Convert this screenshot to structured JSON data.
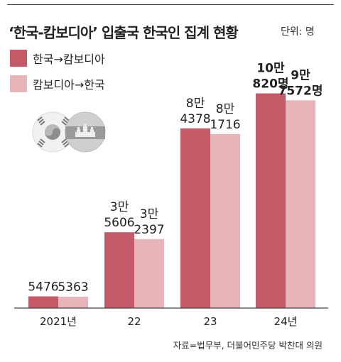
{
  "header": {
    "title": "‘한국-캄보디아’ 입출국 한국인 집계 현황",
    "unit": "단위: 명"
  },
  "source": "자료=법무부, 더불어민주당 박찬대 의원",
  "colors": {
    "series1": "#c45a67",
    "series2": "#e6b4b9",
    "axis": "#444444"
  },
  "icons": [
    "korea-flag-icon",
    "cambodia-flag-icon"
  ],
  "chart_data": {
    "type": "bar",
    "categories": [
      "2021년",
      "22",
      "23",
      "24년"
    ],
    "series": [
      {
        "name": "한국→캄보디아",
        "values": [
          5476,
          35606,
          84378,
          100820
        ],
        "labels": [
          [
            "5476"
          ],
          [
            "3만",
            "5606"
          ],
          [
            "8만",
            "4378"
          ],
          [
            "10만",
            "820명"
          ]
        ]
      },
      {
        "name": "캄보디아→한국",
        "values": [
          5363,
          32397,
          81716,
          97572
        ],
        "labels": [
          [
            "5363"
          ],
          [
            "3만",
            "2397"
          ],
          [
            "8만",
            "1716"
          ],
          [
            "9만",
            "7572명"
          ]
        ]
      }
    ],
    "ylim": [
      0,
      110000
    ],
    "grid": false,
    "legend": "top-left",
    "xlabel": "",
    "ylabel": ""
  }
}
